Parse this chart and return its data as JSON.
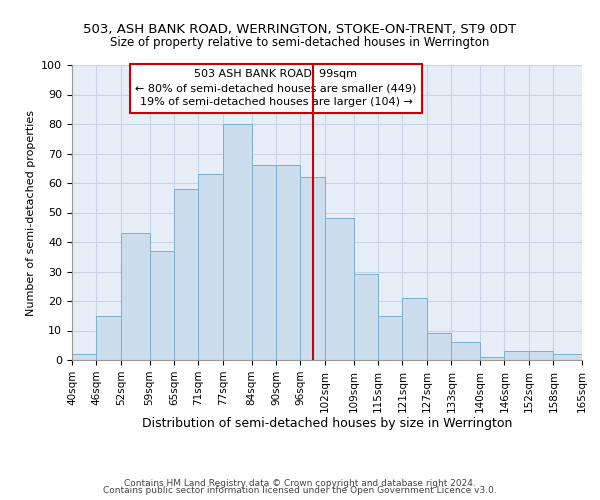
{
  "title1": "503, ASH BANK ROAD, WERRINGTON, STOKE-ON-TRENT, ST9 0DT",
  "title2": "Size of property relative to semi-detached houses in Werrington",
  "xlabel": "Distribution of semi-detached houses by size in Werrington",
  "ylabel": "Number of semi-detached properties",
  "footer1": "Contains HM Land Registry data © Crown copyright and database right 2024.",
  "footer2": "Contains public sector information licensed under the Open Government Licence v3.0.",
  "bin_labels": [
    "40sqm",
    "46sqm",
    "52sqm",
    "59sqm",
    "65sqm",
    "71sqm",
    "77sqm",
    "84sqm",
    "90sqm",
    "96sqm",
    "102sqm",
    "109sqm",
    "115sqm",
    "121sqm",
    "127sqm",
    "133sqm",
    "140sqm",
    "146sqm",
    "152sqm",
    "158sqm",
    "165sqm"
  ],
  "bin_edges": [
    40,
    46,
    52,
    59,
    65,
    71,
    77,
    84,
    90,
    96,
    102,
    109,
    115,
    121,
    127,
    133,
    140,
    146,
    152,
    158,
    165
  ],
  "bar_heights": [
    2,
    15,
    43,
    37,
    58,
    63,
    80,
    66,
    66,
    62,
    48,
    29,
    15,
    21,
    9,
    6,
    1,
    3,
    3,
    2
  ],
  "bar_color": "#ccdded",
  "bar_edge_color": "#7ab0d0",
  "vline_x": 99,
  "vline_color": "#cc0000",
  "ylim": [
    0,
    100
  ],
  "yticks": [
    0,
    10,
    20,
    30,
    40,
    50,
    60,
    70,
    80,
    90,
    100
  ],
  "grid_color": "#c8d4e4",
  "bg_color": "#e8eef8",
  "box_text1": "503 ASH BANK ROAD: 99sqm",
  "box_text2": "← 80% of semi-detached houses are smaller (449)",
  "box_text3": "19% of semi-detached houses are larger (104) →",
  "box_edge_color": "#cc0000",
  "title1_fontsize": 9.5,
  "title2_fontsize": 8.5,
  "ylabel_fontsize": 8,
  "xlabel_fontsize": 9,
  "tick_fontsize": 7.5,
  "footer_fontsize": 6.5
}
